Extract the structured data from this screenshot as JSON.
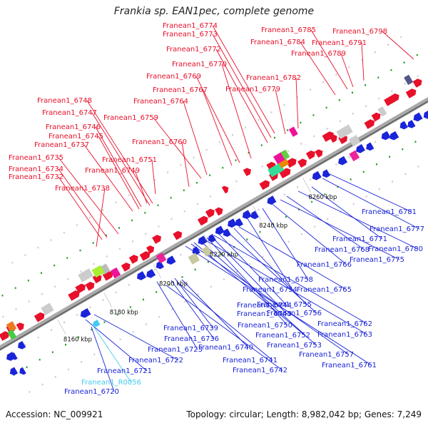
{
  "title": "Frankia sp. EAN1pec, complete genome",
  "footer": {
    "accession": "Accession: NC_009921",
    "summary": "Topology: circular; Length: 8,982,042 bp; Genes: 7,249"
  },
  "colors": {
    "forward": "#e8102a",
    "reverse": "#1a24d8",
    "rna": "#44ccee",
    "backbone": "#888888"
  },
  "kbp_ticks": [
    "8160 kbp",
    "8180 kbp",
    "8200 kbp",
    "8220 kbp",
    "8240 kbp",
    "8260 kbp"
  ],
  "forward_labels": [
    "Franean1_6774",
    "Franean1_6773",
    "Franean1_6772",
    "Franean1_6770",
    "Franean1_6769",
    "Franean1_6767",
    "Franean1_6764",
    "Franean1_6759",
    "Franean1_6760",
    "Franean1_6751",
    "Franean1_6749",
    "Franean1_6748",
    "Franean1_6747",
    "Franean1_6746",
    "Franean1_6745",
    "Franean1_6737",
    "Franean1_6735",
    "Franean1_6734",
    "Franean1_6732",
    "Franean1_6738",
    "Franean1_6785",
    "Franean1_6784",
    "Franean1_6798",
    "Franean1_6791",
    "Franean1_6789",
    "Franean1_6782",
    "Franean1_6779"
  ],
  "reverse_labels": [
    "Franean1_6781",
    "Franean1_6777",
    "Franean1_6771",
    "Franean1_6780",
    "Franean1_6768",
    "Franean1_6775",
    "Franean1_6766",
    "Franean1_6758",
    "Franean1_6754",
    "Franean1_6765",
    "Franean1_6755",
    "Franean1_6744",
    "Franean1_6756",
    "Franean1_6743",
    "Franean1_6762",
    "Franean1_6750",
    "Franean1_6739",
    "Franean1_6763",
    "Franean1_6752",
    "Franean1_6736",
    "Franean1_6740",
    "Franean1_6753",
    "Franean1_6723",
    "Franean1_6757",
    "Franean1_6741",
    "Franean1_6722",
    "Franean1_6761",
    "Franean1_6742",
    "Franean1_6721",
    "Franean1_6720"
  ],
  "rna_labels": [
    "Franean1_R0056"
  ]
}
